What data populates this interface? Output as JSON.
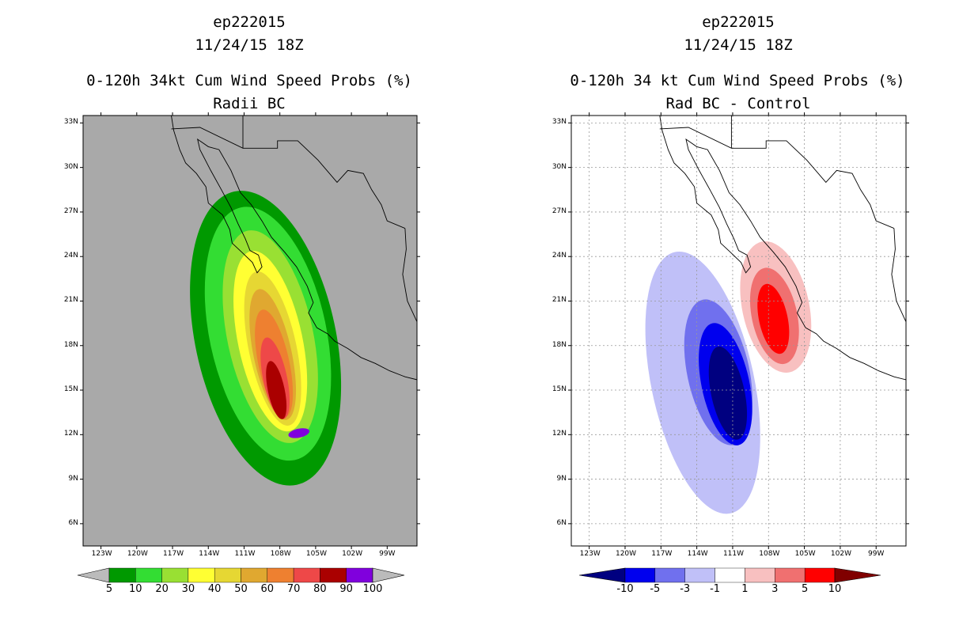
{
  "chart_data": [
    {
      "type": "contour",
      "title_lines": [
        "ep222015",
        "11/24/15 18Z",
        "0-120h 34kt Cum Wind Speed Probs (%)",
        "Radii BC"
      ],
      "xlabel": "",
      "ylabel": "",
      "xlim": [
        -124.5,
        -96.5
      ],
      "ylim": [
        4.5,
        33.5
      ],
      "x_ticks": [
        -123,
        -120,
        -117,
        -114,
        -111,
        -108,
        -105,
        -102,
        -99
      ],
      "x_tick_labels": [
        "123W",
        "120W",
        "117W",
        "114W",
        "111W",
        "108W",
        "105W",
        "102W",
        "99W"
      ],
      "y_ticks": [
        6,
        9,
        12,
        15,
        18,
        21,
        24,
        27,
        30,
        33
      ],
      "y_tick_labels": [
        "6N",
        "9N",
        "12N",
        "15N",
        "18N",
        "21N",
        "24N",
        "27N",
        "30N",
        "33N"
      ],
      "background_color": "#a9a9a9",
      "gridlines": false,
      "colorbar_levels": [
        "5",
        "10",
        "20",
        "30",
        "40",
        "50",
        "60",
        "70",
        "80",
        "90",
        "100"
      ],
      "colorbar_colors": [
        "#009900",
        "#33dd33",
        "#99e033",
        "#ffff33",
        "#e6d733",
        "#e0a830",
        "#ee8030",
        "#ee4848",
        "#aa0000",
        "#8000dd"
      ],
      "colorbar_ends": [
        "#bbbbbb",
        "#bbbbbb"
      ],
      "contours": [
        {
          "level": 5,
          "color": "#009900",
          "center": [
            -109.2,
            18.5
          ],
          "rx": 5.9,
          "ry": 10.1
        },
        {
          "level": 10,
          "color": "#33dd33",
          "center": [
            -109.0,
            18.8
          ],
          "rx": 4.9,
          "ry": 8.7
        },
        {
          "level": 20,
          "color": "#99e033",
          "center": [
            -108.8,
            18.6
          ],
          "rx": 3.6,
          "ry": 7.3
        },
        {
          "level": 30,
          "color": "#ffff33",
          "center": [
            -108.8,
            18.3
          ],
          "rx": 2.7,
          "ry": 6.2
        },
        {
          "level": 40,
          "color": "#e6d733",
          "center": [
            -108.6,
            17.8
          ],
          "rx": 2.0,
          "ry": 5.3
        },
        {
          "level": 50,
          "color": "#e0a830",
          "center": [
            -108.6,
            17.4
          ],
          "rx": 1.6,
          "ry": 4.5
        },
        {
          "level": 60,
          "color": "#ee8030",
          "center": [
            -108.5,
            16.8
          ],
          "rx": 1.3,
          "ry": 3.7
        },
        {
          "level": 70,
          "color": "#ee4848",
          "center": [
            -108.4,
            15.8
          ],
          "rx": 1.0,
          "ry": 2.8
        },
        {
          "level": 80,
          "color": "#aa0000",
          "center": [
            -108.3,
            15.0
          ],
          "rx": 0.7,
          "ry": 2.0
        },
        {
          "level": 90,
          "color": "#8000dd",
          "center": [
            -106.4,
            12.1
          ],
          "rx": 0.9,
          "ry": 0.3
        }
      ]
    },
    {
      "type": "contour",
      "title_lines": [
        "ep222015",
        "11/24/15 18Z",
        "0-120h 34 kt Cum Wind Speed Probs (%)",
        "Rad BC - Control"
      ],
      "xlabel": "",
      "ylabel": "",
      "xlim": [
        -124.5,
        -96.5
      ],
      "ylim": [
        4.5,
        33.5
      ],
      "x_ticks": [
        -123,
        -120,
        -117,
        -114,
        -111,
        -108,
        -105,
        -102,
        -99
      ],
      "x_tick_labels": [
        "123W",
        "120W",
        "117W",
        "114W",
        "111W",
        "108W",
        "105W",
        "102W",
        "99W"
      ],
      "y_ticks": [
        6,
        9,
        12,
        15,
        18,
        21,
        24,
        27,
        30,
        33
      ],
      "y_tick_labels": [
        "6N",
        "9N",
        "12N",
        "15N",
        "18N",
        "21N",
        "24N",
        "27N",
        "30N",
        "33N"
      ],
      "background_color": "#ffffff",
      "gridlines": true,
      "colorbar_levels": [
        "-10",
        "-5",
        "-3",
        "-1",
        "1",
        "3",
        "5",
        "10"
      ],
      "colorbar_colors": [
        "#0000ee",
        "#7070ee",
        "#c0c0f8",
        "#ffffff",
        "#f8c0c0",
        "#f07070",
        "#ff0000"
      ],
      "colorbar_ends": [
        "#000080",
        "#800000"
      ],
      "contours": [
        {
          "level": -1,
          "color": "#c0c0f8",
          "center": [
            -113.5,
            15.5
          ],
          "rx": 4.3,
          "ry": 9.0
        },
        {
          "level": -3,
          "color": "#7070ee",
          "center": [
            -112.2,
            16.2
          ],
          "rx": 2.6,
          "ry": 5.0
        },
        {
          "level": -5,
          "color": "#0000ee",
          "center": [
            -111.6,
            15.4
          ],
          "rx": 2.0,
          "ry": 4.2
        },
        {
          "level": -10,
          "color": "#000080",
          "center": [
            -111.4,
            14.8
          ],
          "rx": 1.4,
          "ry": 3.2
        },
        {
          "level": 1,
          "color": "#f8c0c0",
          "center": [
            -107.4,
            20.6
          ],
          "rx": 2.8,
          "ry": 4.5
        },
        {
          "level": 3,
          "color": "#f07070",
          "center": [
            -107.5,
            20.0
          ],
          "rx": 1.9,
          "ry": 3.3
        },
        {
          "level": 5,
          "color": "#ff0000",
          "center": [
            -107.6,
            19.8
          ],
          "rx": 1.2,
          "ry": 2.4
        }
      ]
    }
  ]
}
